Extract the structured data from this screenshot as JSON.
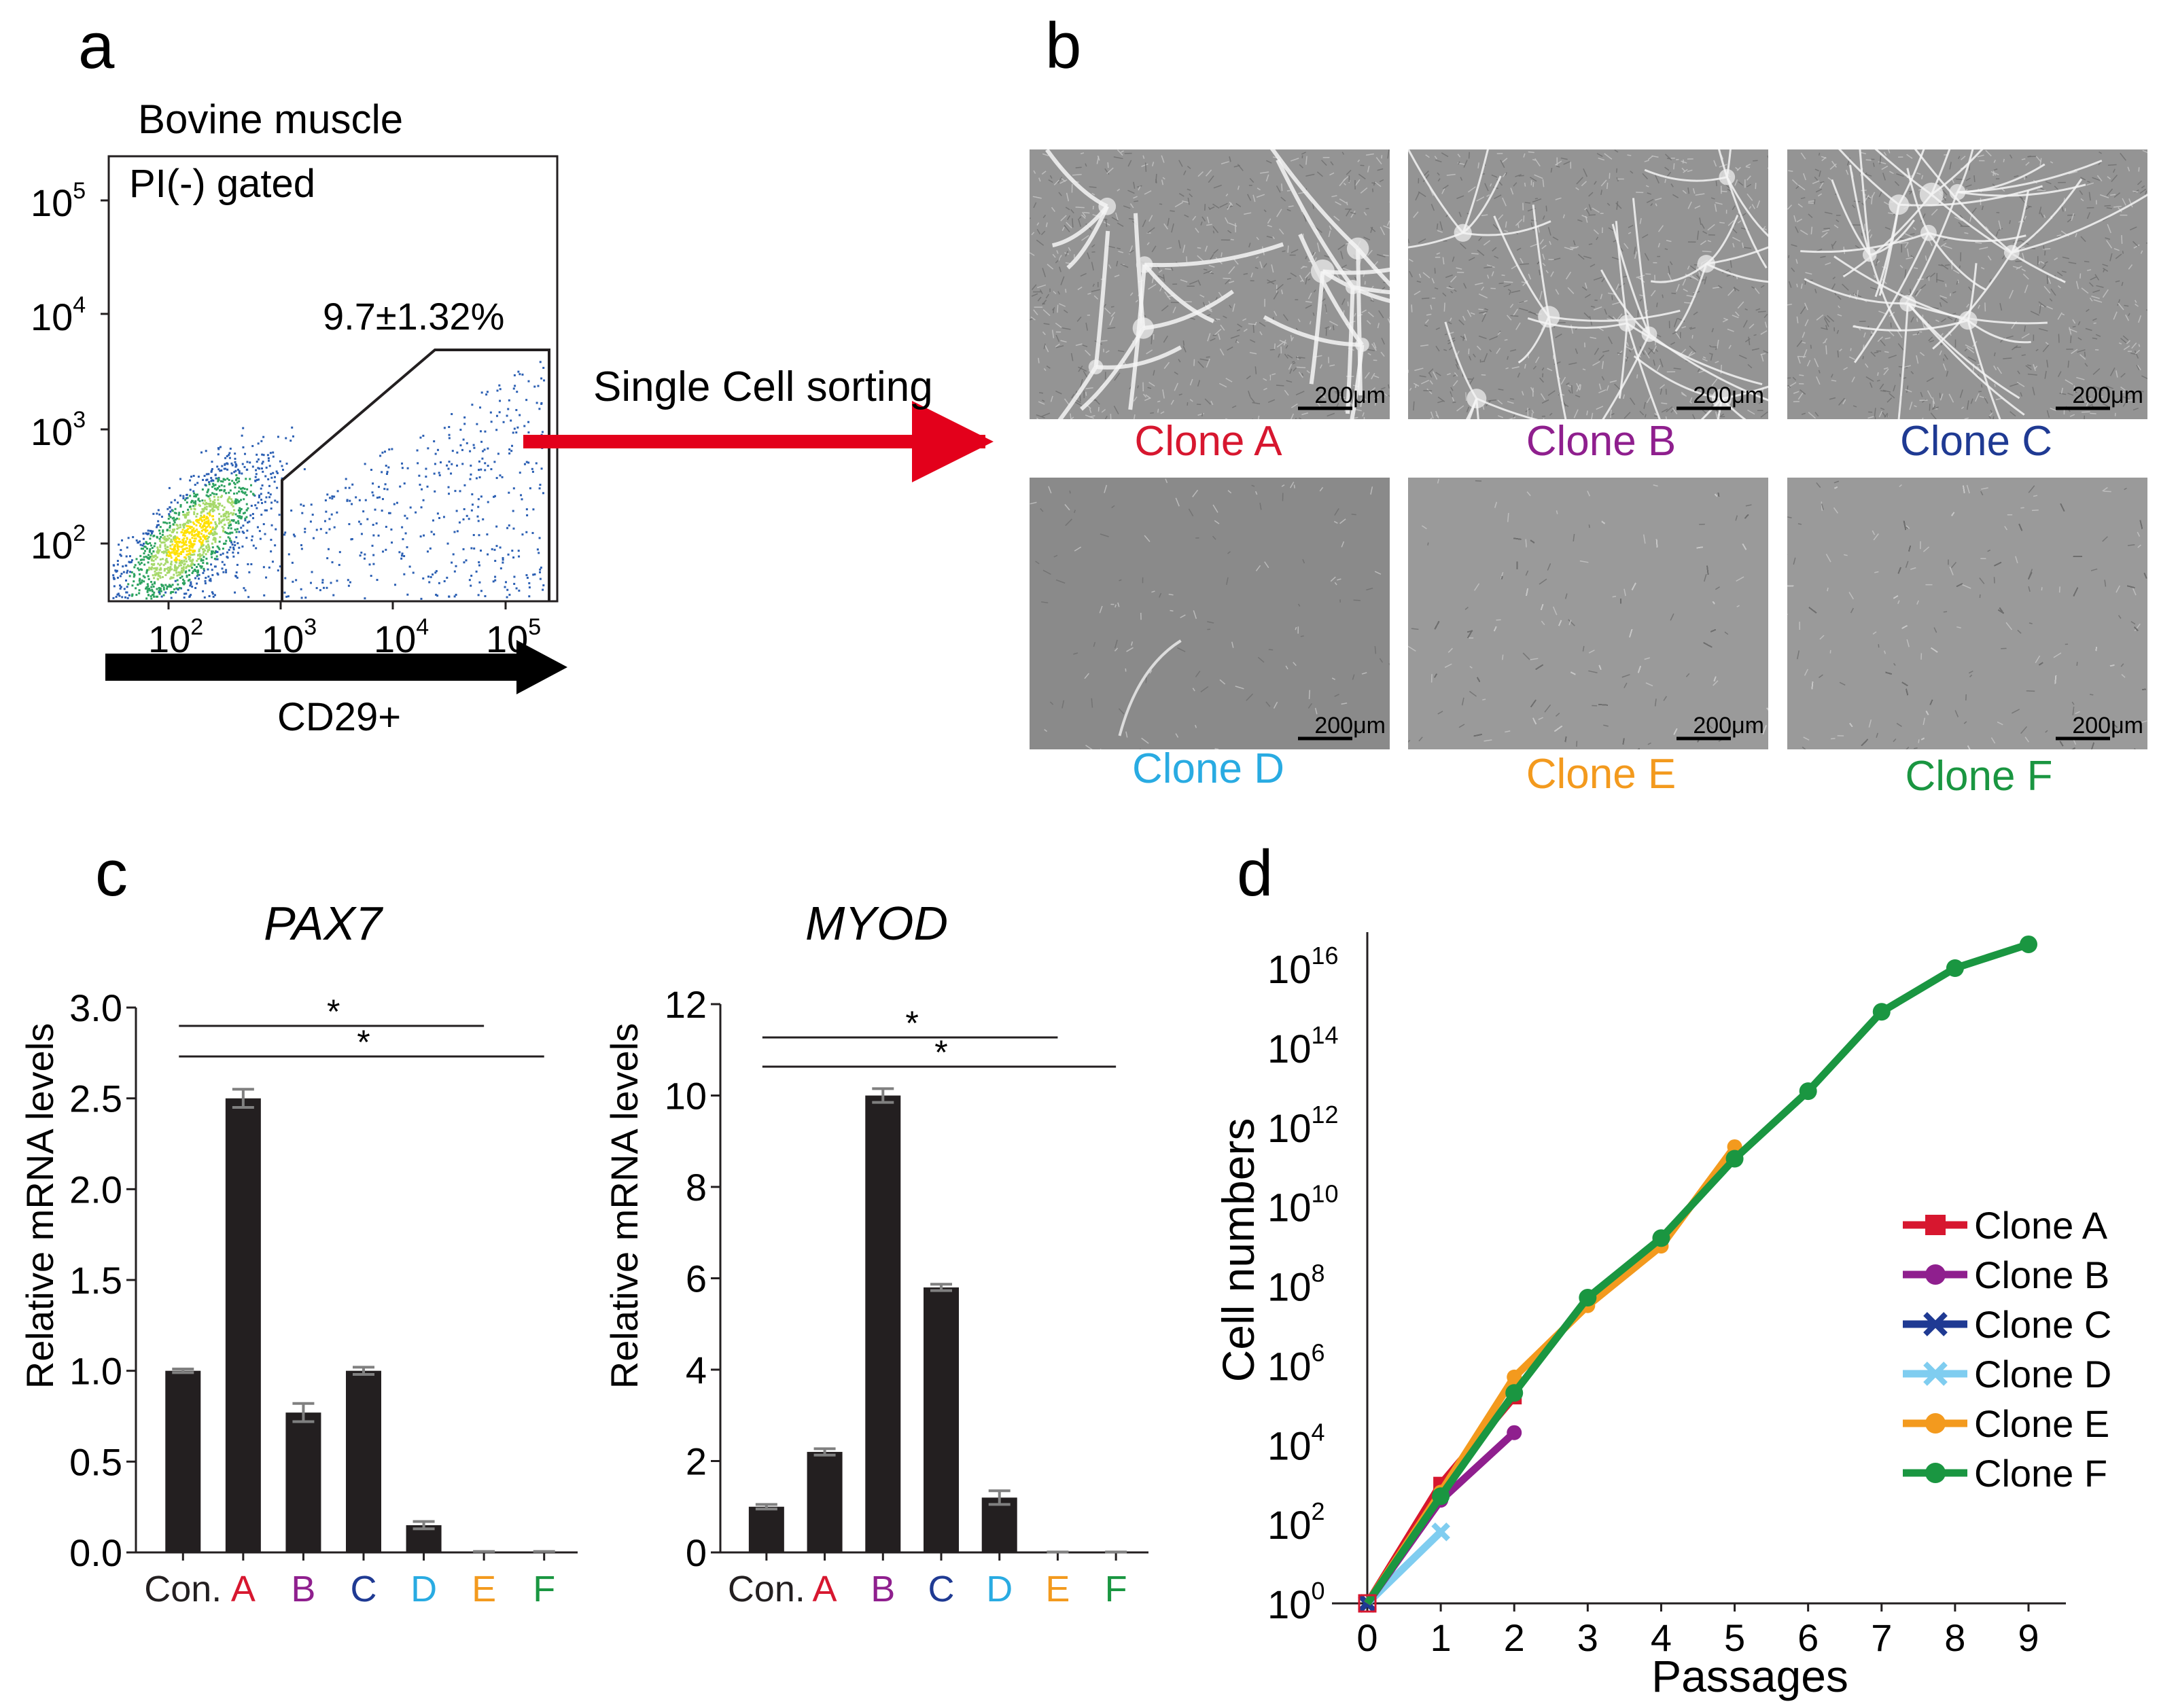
{
  "panel_labels": {
    "a": "a",
    "b": "b",
    "c": "c",
    "d": "d"
  },
  "colors": {
    "A": "#d7172f",
    "B": "#8f1f8e",
    "C": "#1f3a93",
    "D": "#29abe2",
    "E": "#f39a1e",
    "F": "#1a9641",
    "bar": "#231f20",
    "arrow_red": "#e3001b",
    "err": "#808080",
    "d_light_blue": "#7fcdf0"
  },
  "panel_a": {
    "title": "Bovine muscle",
    "gate_text": "PI(-) gated",
    "gate_percent": "9.7±1.32%",
    "xlabel": "CD29+",
    "x_ticks": [
      {
        "base": "10",
        "exp": "2"
      },
      {
        "base": "10",
        "exp": "3"
      },
      {
        "base": "10",
        "exp": "4"
      },
      {
        "base": "10",
        "exp": "5"
      }
    ],
    "y_ticks": [
      {
        "base": "10",
        "exp": "2"
      },
      {
        "base": "10",
        "exp": "3"
      },
      {
        "base": "10",
        "exp": "4"
      },
      {
        "base": "10",
        "exp": "5"
      }
    ],
    "arrow_label": "Single Cell sorting"
  },
  "panel_b": {
    "scale_bar": "200μm",
    "clones": [
      {
        "label": "Clone A",
        "color": "#d7172f",
        "pattern": "network"
      },
      {
        "label": "Clone B",
        "color": "#8f1f8e",
        "pattern": "fibers"
      },
      {
        "label": "Clone C",
        "color": "#1f3a93",
        "pattern": "fibers"
      },
      {
        "label": "Clone D",
        "color": "#29abe2",
        "pattern": "sparse"
      },
      {
        "label": "Clone E",
        "color": "#f39a1e",
        "pattern": "dense"
      },
      {
        "label": "Clone F",
        "color": "#1a9641",
        "pattern": "dense"
      }
    ]
  },
  "chart_data": [
    {
      "type": "bar",
      "title": "PAX7",
      "ylabel": "Relative mRNA levels",
      "categories": [
        "Con.",
        "A",
        "B",
        "C",
        "D",
        "E",
        "F"
      ],
      "category_colors": [
        "#231f20",
        "#d7172f",
        "#8f1f8e",
        "#1f3a93",
        "#29abe2",
        "#f39a1e",
        "#1a9641"
      ],
      "values": [
        1.0,
        2.5,
        0.77,
        1.0,
        0.15,
        0.0,
        0.0
      ],
      "errors": [
        0.01,
        0.05,
        0.05,
        0.02,
        0.02,
        0.005,
        0.005
      ],
      "ylim": [
        0,
        3.0
      ],
      "yticks": [
        "0.0",
        "0.5",
        "1.0",
        "1.5",
        "2.0",
        "2.5",
        "3.0"
      ],
      "significance": [
        {
          "from": "Con.",
          "to": "E",
          "label": "*"
        },
        {
          "from": "Con.",
          "to": "F",
          "label": "*"
        }
      ]
    },
    {
      "type": "bar",
      "title": "MYOD",
      "ylabel": "Relative mRNA levels",
      "categories": [
        "Con.",
        "A",
        "B",
        "C",
        "D",
        "E",
        "F"
      ],
      "category_colors": [
        "#231f20",
        "#d7172f",
        "#8f1f8e",
        "#1f3a93",
        "#29abe2",
        "#f39a1e",
        "#1a9641"
      ],
      "values": [
        1.0,
        2.2,
        10.0,
        5.8,
        1.2,
        0.0,
        0.0
      ],
      "errors": [
        0.05,
        0.07,
        0.15,
        0.07,
        0.15,
        0.01,
        0.01
      ],
      "ylim": [
        0,
        12
      ],
      "yticks": [
        "0",
        "2",
        "4",
        "6",
        "8",
        "10",
        "12"
      ],
      "significance": [
        {
          "from": "Con.",
          "to": "E",
          "label": "*"
        },
        {
          "from": "Con.",
          "to": "F",
          "label": "*"
        }
      ]
    },
    {
      "type": "line",
      "title": "",
      "xlabel": "Passages",
      "ylabel": "Cell numbers",
      "yscale": "log10",
      "xlim": [
        0,
        9
      ],
      "ylim_log10": [
        0,
        16
      ],
      "x_ticks": [
        "0",
        "1",
        "2",
        "3",
        "4",
        "5",
        "6",
        "7",
        "8",
        "9"
      ],
      "y_ticks": [
        {
          "base": "10",
          "exp": "0"
        },
        {
          "base": "10",
          "exp": "2"
        },
        {
          "base": "10",
          "exp": "4"
        },
        {
          "base": "10",
          "exp": "6"
        },
        {
          "base": "10",
          "exp": "8"
        },
        {
          "base": "10",
          "exp": "10"
        },
        {
          "base": "10",
          "exp": "12"
        },
        {
          "base": "10",
          "exp": "14"
        },
        {
          "base": "10",
          "exp": "16"
        }
      ],
      "legend_position": "right",
      "series": [
        {
          "name": "Clone A",
          "color": "#d7172f",
          "marker": "square",
          "x": [
            0,
            1,
            2
          ],
          "log10_y": [
            0,
            3.0,
            5.2
          ]
        },
        {
          "name": "Clone B",
          "color": "#8f1f8e",
          "marker": "circle",
          "x": [
            0,
            1,
            2
          ],
          "log10_y": [
            0,
            2.6,
            4.3
          ]
        },
        {
          "name": "Clone C",
          "color": "#1f3a93",
          "marker": "x",
          "x": [
            0
          ],
          "log10_y": [
            0
          ]
        },
        {
          "name": "Clone D",
          "color": "#7fcdf0",
          "marker": "x",
          "x": [
            0,
            1
          ],
          "log10_y": [
            0,
            1.8
          ]
        },
        {
          "name": "Clone E",
          "color": "#f39a1e",
          "marker": "circle",
          "x": [
            0,
            1,
            2,
            3,
            4,
            5
          ],
          "log10_y": [
            0,
            2.8,
            5.7,
            7.5,
            9.0,
            11.5
          ]
        },
        {
          "name": "Clone F",
          "color": "#1a9641",
          "marker": "octagon",
          "x": [
            0,
            1,
            2,
            3,
            4,
            5,
            6,
            7,
            8,
            9
          ],
          "log10_y": [
            0,
            2.7,
            5.3,
            7.7,
            9.2,
            11.2,
            12.9,
            14.9,
            16.0,
            16.6
          ]
        }
      ]
    }
  ]
}
